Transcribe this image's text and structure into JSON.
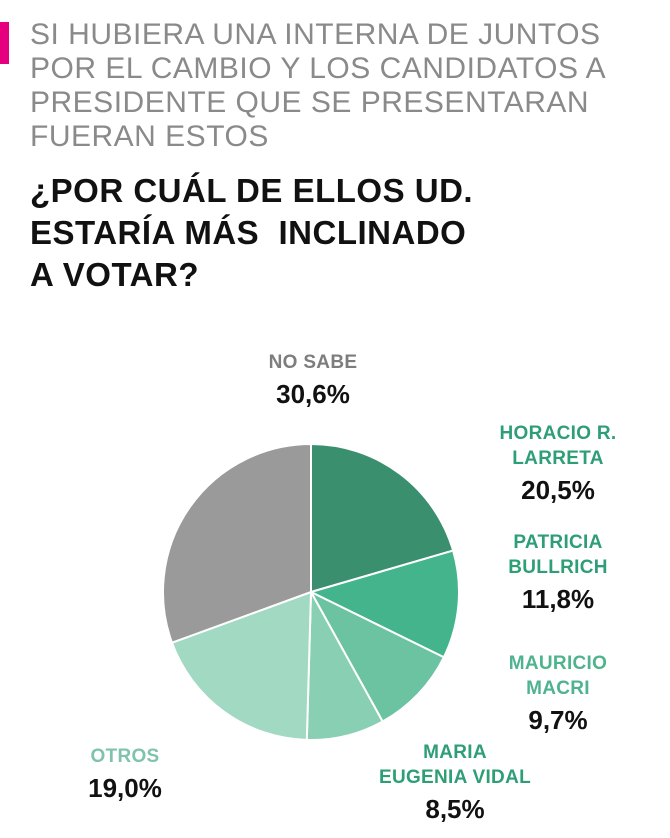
{
  "header": {
    "subtitle_lines": [
      "SI HUBIERA UNA INTERNA DE JUNTOS",
      "POR EL CAMBIO Y LOS CANDIDATOS A",
      "PRESIDENTE QUE SE PRESENTARAN",
      "FUERAN ESTOS"
    ],
    "question_lines": [
      "¿POR CUÁL DE ELLOS UD.",
      "ESTARÍA MÁS  INCLINADO",
      "A VOTAR?"
    ]
  },
  "colors": {
    "accent": "#e6007e",
    "subtitle": "#8a8a8a",
    "question": "#111111"
  },
  "chart_data": {
    "type": "pie",
    "title": "¿POR CUÁL DE ELLOS UD. ESTARÍA MÁS INCLINADO A VOTAR?",
    "start_angle_deg": 0,
    "direction": "clockwise",
    "slices": [
      {
        "key": "larreta",
        "name_lines": [
          "HORACIO R.",
          "LARRETA"
        ],
        "value": 20.5,
        "label": "20,5%",
        "color": "#3a8f6e",
        "label_color": "#2e9e77"
      },
      {
        "key": "bullrich",
        "name_lines": [
          "PATRICIA",
          "BULLRICH"
        ],
        "value": 11.8,
        "label": "11,8%",
        "color": "#43b48b",
        "label_color": "#2e9e77"
      },
      {
        "key": "macri",
        "name_lines": [
          "MAURICIO",
          "MACRI"
        ],
        "value": 9.7,
        "label": "9,7%",
        "color": "#6cc3a1",
        "label_color": "#4fb38f"
      },
      {
        "key": "vidal",
        "name_lines": [
          "MARIA",
          "EUGENIA VIDAL"
        ],
        "value": 8.5,
        "label": "8,5%",
        "color": "#89cfb4",
        "label_color": "#2e9e77"
      },
      {
        "key": "otros",
        "name_lines": [
          "OTROS"
        ],
        "value": 19.0,
        "label": "19,0%",
        "color": "#a1d9c3",
        "label_color": "#7fc4aa"
      },
      {
        "key": "no-sabe",
        "name_lines": [
          "NO SABE"
        ],
        "value": 30.6,
        "label": "30,6%",
        "color": "#9a9a9a",
        "label_color": "#7d7d7d"
      }
    ]
  }
}
